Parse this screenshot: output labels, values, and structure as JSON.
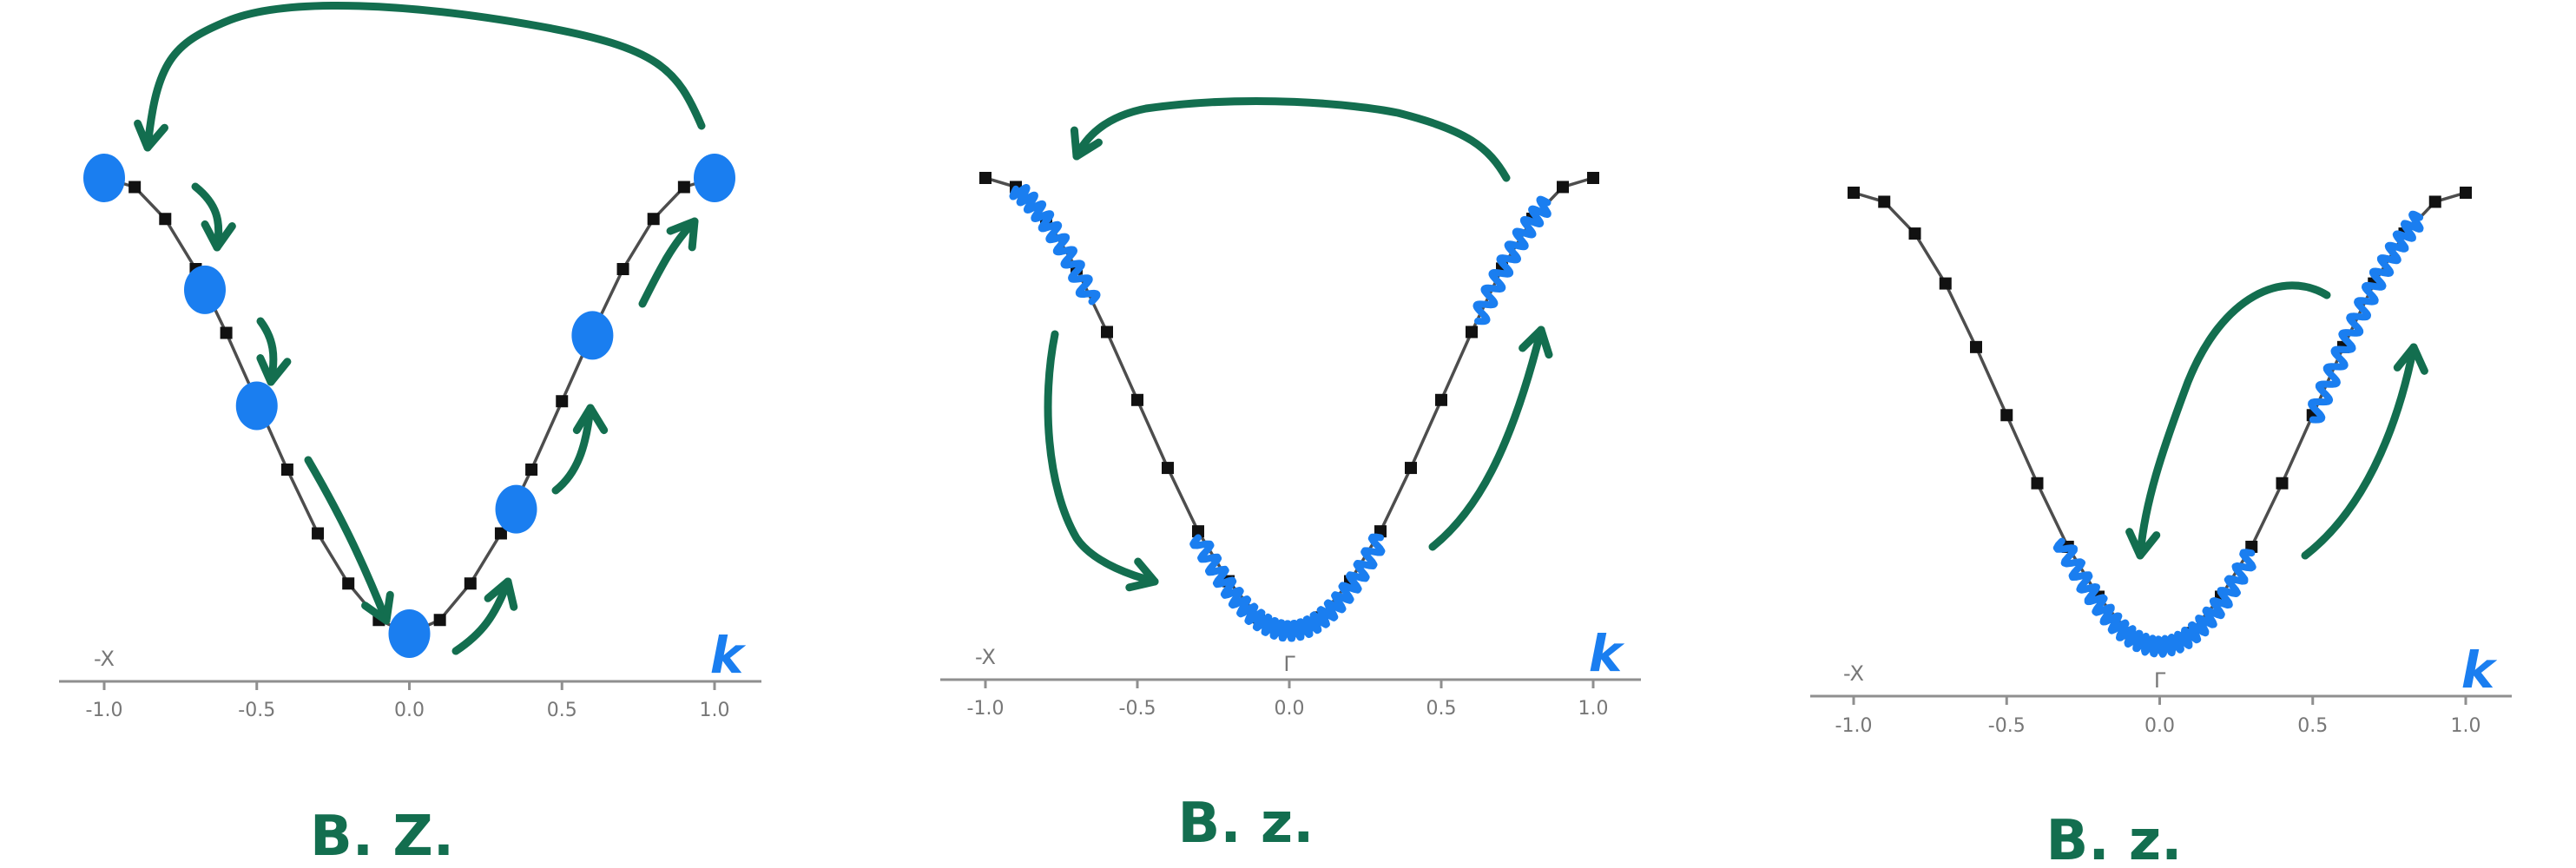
{
  "colors": {
    "axis": "#8f8f8f",
    "band": "#4d4d4d",
    "point": "#111111",
    "blue": "#1a7ef0",
    "green": "#136e4f",
    "tick_text": "#777777"
  },
  "panels": [
    {
      "mode": "points",
      "end_label": "-X",
      "gamma_label": "",
      "k_label": "k",
      "bz_label": "B. Z.",
      "tick_labels": [
        "-1.0",
        "-0.5",
        "0.0",
        "0.5",
        "1.0"
      ]
    },
    {
      "mode": "wave-packet",
      "end_label": "-X",
      "gamma_label": "Γ",
      "k_label": "k",
      "bz_label": "B. z.",
      "tick_labels": [
        "-1.0",
        "-0.5",
        "0.0",
        "0.5",
        "1.0"
      ]
    },
    {
      "mode": "wave-packet",
      "end_label": "-X",
      "gamma_label": "Γ",
      "k_label": "k",
      "bz_label": "B. z.",
      "tick_labels": [
        "-1.0",
        "-0.5",
        "0.0",
        "0.5",
        "1.0"
      ]
    }
  ],
  "chart_data": {
    "type": "line",
    "xlabel": "k",
    "xlim": [
      -1.0,
      1.0
    ],
    "x_ticks": [
      -1.0,
      -0.5,
      0.0,
      0.5,
      1.0
    ],
    "band_points_x": [
      -1.0,
      -0.9,
      -0.8,
      -0.7,
      -0.6,
      -0.5,
      -0.4,
      -0.3,
      -0.2,
      -0.1,
      0.0,
      0.1,
      0.2,
      0.3,
      0.4,
      0.5,
      0.6,
      0.7,
      0.8,
      0.9,
      1.0
    ],
    "band_points_y": [
      1.0,
      0.98,
      0.91,
      0.8,
      0.66,
      0.51,
      0.36,
      0.22,
      0.11,
      0.03,
      0.0,
      0.03,
      0.11,
      0.22,
      0.36,
      0.51,
      0.66,
      0.8,
      0.91,
      0.98,
      1.0
    ],
    "panel1_blue_dots_k": [
      -1.0,
      -0.67,
      -0.5,
      0.0,
      0.35,
      0.6,
      1.0
    ],
    "panel2_wave_segments_k": [
      [
        -0.9,
        -0.65
      ],
      [
        -0.3,
        0.3
      ],
      [
        0.62,
        0.85
      ]
    ],
    "panel3_wave_segments_k": [
      [
        -0.32,
        0.3
      ],
      [
        0.5,
        0.85
      ]
    ]
  }
}
